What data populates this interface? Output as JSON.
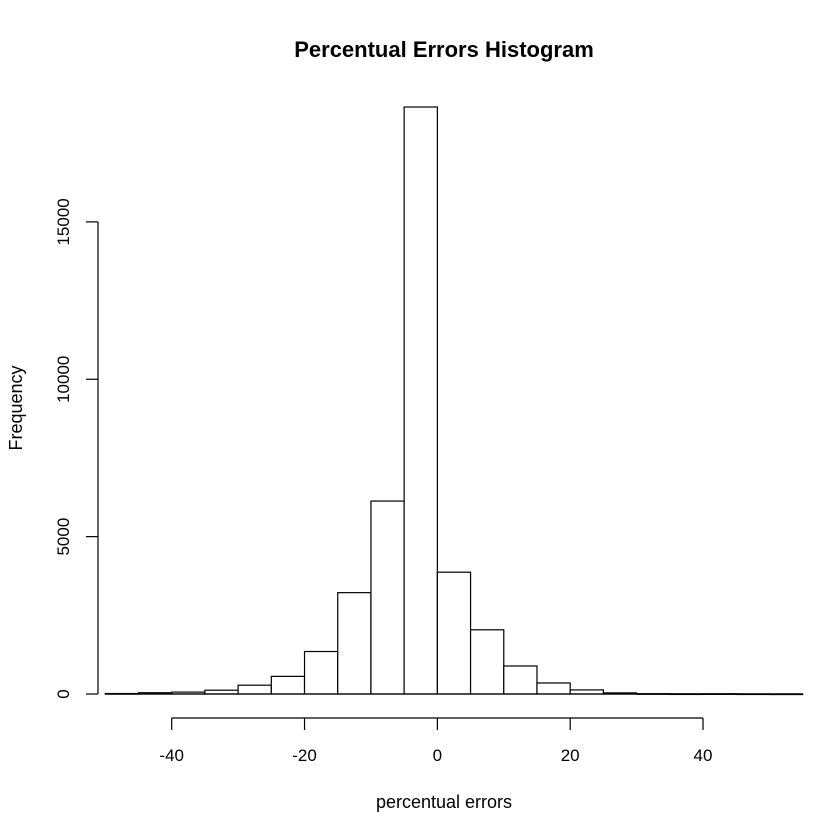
{
  "chart_data": {
    "type": "bar",
    "title": "Percentual Errors Histogram",
    "xlabel": "percentual errors",
    "ylabel": "Frequency",
    "bins": [
      {
        "x0": -50,
        "x1": -45,
        "count": 15
      },
      {
        "x0": -45,
        "x1": -40,
        "count": 40
      },
      {
        "x0": -40,
        "x1": -35,
        "count": 60
      },
      {
        "x0": -35,
        "x1": -30,
        "count": 120
      },
      {
        "x0": -30,
        "x1": -25,
        "count": 280
      },
      {
        "x0": -25,
        "x1": -20,
        "count": 560
      },
      {
        "x0": -20,
        "x1": -15,
        "count": 1350
      },
      {
        "x0": -15,
        "x1": -10,
        "count": 3220
      },
      {
        "x0": -10,
        "x1": -5,
        "count": 6130
      },
      {
        "x0": -5,
        "x1": 0,
        "count": 18650
      },
      {
        "x0": 0,
        "x1": 5,
        "count": 3870
      },
      {
        "x0": 5,
        "x1": 10,
        "count": 2040
      },
      {
        "x0": 10,
        "x1": 15,
        "count": 890
      },
      {
        "x0": 15,
        "x1": 20,
        "count": 350
      },
      {
        "x0": 20,
        "x1": 25,
        "count": 130
      },
      {
        "x0": 25,
        "x1": 30,
        "count": 35
      },
      {
        "x0": 30,
        "x1": 35,
        "count": 10
      },
      {
        "x0": 35,
        "x1": 40,
        "count": 5
      },
      {
        "x0": 40,
        "x1": 45,
        "count": 8
      },
      {
        "x0": 45,
        "x1": 50,
        "count": 4
      },
      {
        "x0": 50,
        "x1": 55,
        "count": 2
      }
    ],
    "xticks": [
      -40,
      -20,
      0,
      20,
      40
    ],
    "xtick_labels": [
      "-40",
      "-20",
      "0",
      "20",
      "40"
    ],
    "yticks": [
      0,
      5000,
      10000,
      15000
    ],
    "ytick_labels": [
      "0",
      "5000",
      "10000",
      "15000"
    ],
    "xlim": [
      -52,
      54
    ],
    "ylim": [
      0,
      19000
    ],
    "grid": false,
    "bar_fill": "#ffffff",
    "bar_stroke": "#000000"
  }
}
